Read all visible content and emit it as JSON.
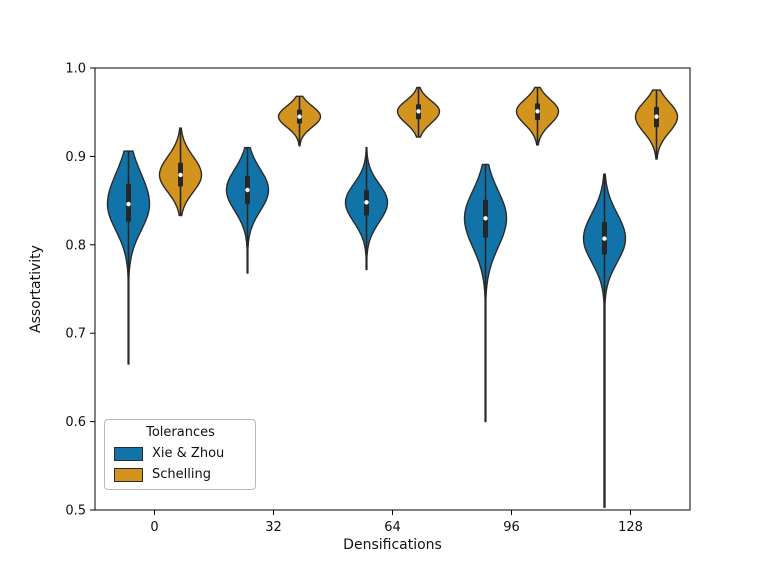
{
  "chart_data": {
    "type": "violin",
    "title": "",
    "xlabel": "Densifications",
    "ylabel": "Assortativity",
    "ylim": [
      0.5,
      1.0
    ],
    "yticks": [
      "0.5",
      "0.6",
      "0.7",
      "0.8",
      "0.9",
      "1.0"
    ],
    "categories": [
      "0",
      "32",
      "64",
      "96",
      "128"
    ],
    "grid": false,
    "legend": {
      "title": "Tolerances",
      "position": "lower left",
      "entries": [
        {
          "label": "Xie & Zhou",
          "color": "#1273a8"
        },
        {
          "label": "Schelling",
          "color": "#d3941f"
        }
      ]
    },
    "style": {
      "edge_color": "#2b2b2b",
      "box_color": "#262626",
      "median_dot_color": "#ffffff",
      "spine_color": "#000000"
    },
    "series": [
      {
        "name": "Xie & Zhou",
        "color": "#1273a8",
        "violins": [
          {
            "category": "0",
            "min": 0.665,
            "q1": 0.826,
            "median": 0.846,
            "q3": 0.869,
            "max": 0.906
          },
          {
            "category": "32",
            "min": 0.768,
            "q1": 0.846,
            "median": 0.862,
            "q3": 0.878,
            "max": 0.91
          },
          {
            "category": "64",
            "min": 0.772,
            "q1": 0.833,
            "median": 0.848,
            "q3": 0.862,
            "max": 0.91
          },
          {
            "category": "96",
            "min": 0.6,
            "q1": 0.808,
            "median": 0.83,
            "q3": 0.851,
            "max": 0.891
          },
          {
            "category": "128",
            "min": 0.503,
            "q1": 0.789,
            "median": 0.807,
            "q3": 0.826,
            "max": 0.88
          }
        ]
      },
      {
        "name": "Schelling",
        "color": "#d3941f",
        "violins": [
          {
            "category": "0",
            "min": 0.833,
            "q1": 0.866,
            "median": 0.879,
            "q3": 0.893,
            "max": 0.932
          },
          {
            "category": "32",
            "min": 0.912,
            "q1": 0.937,
            "median": 0.945,
            "q3": 0.953,
            "max": 0.968
          },
          {
            "category": "64",
            "min": 0.922,
            "q1": 0.942,
            "median": 0.951,
            "q3": 0.959,
            "max": 0.978
          },
          {
            "category": "96",
            "min": 0.913,
            "q1": 0.941,
            "median": 0.951,
            "q3": 0.96,
            "max": 0.978
          },
          {
            "category": "128",
            "min": 0.897,
            "q1": 0.933,
            "median": 0.945,
            "q3": 0.956,
            "max": 0.975
          }
        ]
      }
    ]
  }
}
